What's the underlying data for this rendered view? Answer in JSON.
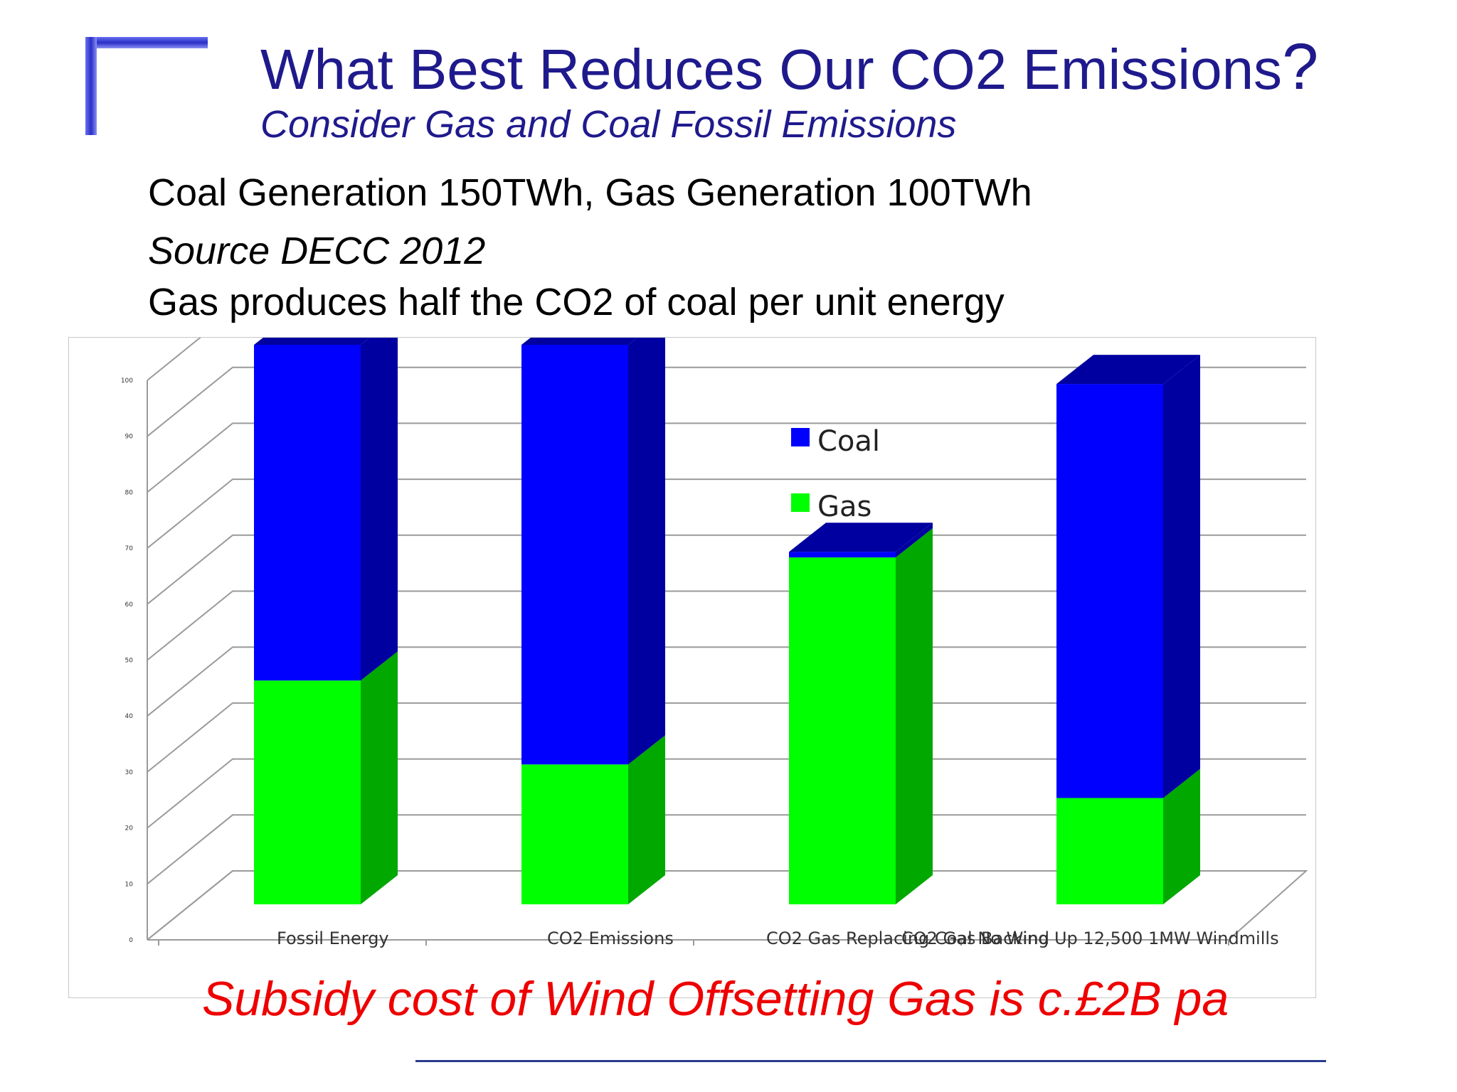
{
  "slide": {
    "title": "What Best Reduces Our CO2 Emissions",
    "title_mark": "?",
    "subtitle": "Consider Gas and Coal Fossil Emissions",
    "lines": [
      "Coal Generation 150TWh, Gas Generation 100TWh",
      "Source DECC 2012",
      "Gas produces half the CO2 of coal per unit energy"
    ],
    "footer": "Subsidy cost of Wind Offsetting Gas is c.£2B pa",
    "colors": {
      "title": "#1f1a8c",
      "footer": "#ee0000",
      "accent_corner": "#3a3fd0"
    }
  },
  "chart_data": {
    "type": "bar",
    "stacked": true,
    "three_d": true,
    "categories": [
      "Fossil Energy",
      "CO2 Emissions",
      "CO2 Gas Replacing Coal No Wind",
      "CO2 Gas Backing Up 12,500 1MW Windmills"
    ],
    "series": [
      {
        "name": "Gas",
        "color": "#00ff00",
        "side_color": "#00a800",
        "values": [
          40,
          25,
          62,
          19
        ]
      },
      {
        "name": "Coal",
        "color": "#0000ff",
        "side_color": "#0000a0",
        "values": [
          60,
          75,
          1,
          74
        ]
      }
    ],
    "yticks": [
      "0",
      "10",
      "20",
      "30",
      "40",
      "50",
      "60",
      "70",
      "80",
      "90",
      "100"
    ],
    "ylim": [
      0,
      100
    ],
    "grid": true,
    "legend_position": "top-right"
  }
}
